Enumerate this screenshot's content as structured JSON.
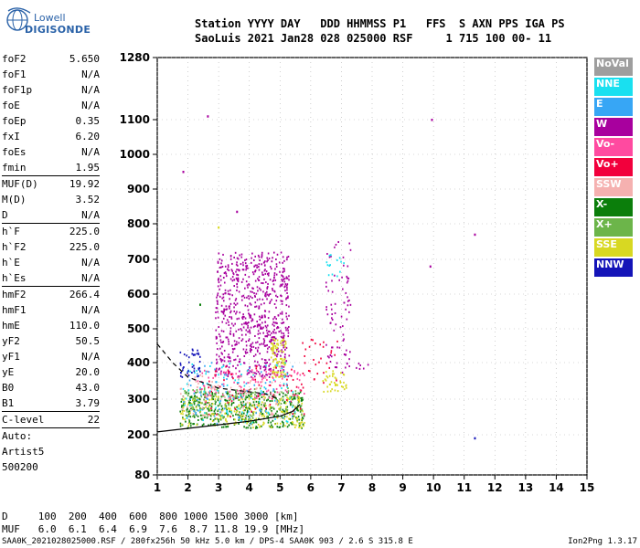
{
  "header": {
    "logo_line1": "Lowell",
    "logo_line2": "DIGISONDE",
    "line1": "Station YYYY DAY   DDD HHMMSS P1   FFS  S AXN PPS IGA PS",
    "line2": "SaoLuis 2021 Jan28 028 025000 RSF     1 715 100 00- 11"
  },
  "params": [
    {
      "k": "foF2",
      "v": "5.650"
    },
    {
      "k": "foF1",
      "v": "N/A"
    },
    {
      "k": "foF1p",
      "v": "N/A"
    },
    {
      "k": "foE",
      "v": "N/A"
    },
    {
      "k": "foEp",
      "v": "0.35"
    },
    {
      "k": "fxI",
      "v": "6.20"
    },
    {
      "k": "foEs",
      "v": "N/A"
    },
    {
      "k": "fmin",
      "v": "1.95"
    },
    {
      "sep": true
    },
    {
      "k": "MUF(D)",
      "v": "19.92"
    },
    {
      "k": "M(D)",
      "v": "3.52"
    },
    {
      "k": "D",
      "v": "N/A"
    },
    {
      "sep": true
    },
    {
      "k": "h`F",
      "v": "225.0"
    },
    {
      "k": "h`F2",
      "v": "225.0"
    },
    {
      "k": "h`E",
      "v": "N/A"
    },
    {
      "k": "h`Es",
      "v": "N/A"
    },
    {
      "sep": true
    },
    {
      "k": "hmF2",
      "v": "266.4"
    },
    {
      "k": "hmF1",
      "v": "N/A"
    },
    {
      "k": "hmE",
      "v": "110.0"
    },
    {
      "k": "yF2",
      "v": "50.5"
    },
    {
      "k": "yF1",
      "v": "N/A"
    },
    {
      "k": "yE",
      "v": "20.0"
    },
    {
      "k": "B0",
      "v": "43.0"
    },
    {
      "k": "B1",
      "v": "3.79"
    },
    {
      "sep": true
    },
    {
      "k": "C-level",
      "v": "22"
    },
    {
      "sep": true
    }
  ],
  "extra": [
    "Auto:",
    "Artist5",
    "500200"
  ],
  "legend": [
    {
      "label": "NoVal",
      "color": "#9e9e9e"
    },
    {
      "label": "NNE",
      "color": "#19e0f0"
    },
    {
      "label": "E",
      "color": "#37a6f5"
    },
    {
      "label": "W",
      "color": "#a8009e"
    },
    {
      "label": "Vo-",
      "color": "#ff4aa0"
    },
    {
      "label": "Vo+",
      "color": "#f2003c"
    },
    {
      "label": "SSW",
      "color": "#f5b1b0"
    },
    {
      "label": "X-",
      "color": "#0b7e0b"
    },
    {
      "label": "X+",
      "color": "#6cb54a"
    },
    {
      "label": "SSE",
      "color": "#d8d822"
    },
    {
      "label": "NNW",
      "color": "#1414b8"
    }
  ],
  "bottom": {
    "d_line": "D     100  200  400  600  800 1000 1500 3000 [km]",
    "muf_line": "MUF   6.0  6.1  6.4  6.9  7.6  8.7 11.8 19.9 [MHz]"
  },
  "footer": {
    "left": "SAA0K_2021028025000.RSF / 280fx256h 50 kHz 5.0 km / DPS-4 SAA0K 903 / 2.6 S 315.8 E",
    "right": "Ion2Png 1.3.17"
  },
  "chart_data": {
    "type": "scatter",
    "xlim": [
      1,
      15
    ],
    "x_ticks": [
      1,
      2,
      3,
      4,
      5,
      6,
      7,
      8,
      9,
      10,
      11,
      12,
      13,
      14,
      15
    ],
    "y_ticks": [
      80,
      200,
      300,
      400,
      500,
      600,
      700,
      800,
      900,
      1000,
      1100,
      1280
    ],
    "y_scale": "nonlinear (ionogram virtual height)",
    "grid": "dotted",
    "lines": [
      {
        "name": "trace",
        "points": [
          [
            1.0,
            208
          ],
          [
            2.0,
            218
          ],
          [
            3.0,
            228
          ],
          [
            4.0,
            238
          ],
          [
            5.0,
            252
          ],
          [
            5.4,
            265
          ],
          [
            5.65,
            285
          ]
        ]
      },
      {
        "name": "dashed",
        "points": [
          [
            1.0,
            455
          ],
          [
            1.5,
            400
          ],
          [
            2.0,
            360
          ],
          [
            3.0,
            330
          ],
          [
            4.0,
            320
          ],
          [
            4.5,
            315
          ],
          [
            5.0,
            300
          ]
        ]
      }
    ],
    "scatter_points": [
      {
        "x": 1.85,
        "y": 950,
        "c": "#a8009e"
      },
      {
        "x": 2.65,
        "y": 1110,
        "c": "#a8009e"
      },
      {
        "x": 9.95,
        "y": 1100,
        "c": "#a8009e"
      },
      {
        "x": 9.9,
        "y": 680,
        "c": "#a8009e"
      },
      {
        "x": 11.35,
        "y": 770,
        "c": "#a8009e"
      },
      {
        "x": 11.35,
        "y": 190,
        "c": "#1414b8"
      },
      {
        "x": 2.4,
        "y": 570,
        "c": "#0b7e0b"
      },
      {
        "x": 3.0,
        "y": 790,
        "c": "#d8d822"
      },
      {
        "x": 3.6,
        "y": 835,
        "c": "#a8009e"
      }
    ],
    "clusters": [
      {
        "x0": 2.9,
        "x1": 5.3,
        "y0": 360,
        "y1": 720,
        "n": 750,
        "c": "#a8009e"
      },
      {
        "x0": 4.7,
        "x1": 5.2,
        "y0": 360,
        "y1": 470,
        "n": 90,
        "c": "#d8d822"
      },
      {
        "x0": 1.75,
        "x1": 5.8,
        "y0": 218,
        "y1": 320,
        "n": 380,
        "c": "#0b7e0b"
      },
      {
        "x0": 1.75,
        "x1": 5.8,
        "y0": 220,
        "y1": 310,
        "n": 220,
        "c": "#d8d822"
      },
      {
        "x0": 1.8,
        "x1": 5.8,
        "y0": 240,
        "y1": 330,
        "n": 160,
        "c": "#6cb54a"
      },
      {
        "x0": 2.2,
        "x1": 5.8,
        "y0": 300,
        "y1": 380,
        "n": 120,
        "c": "#ff4aa0"
      },
      {
        "x0": 2.5,
        "x1": 5.8,
        "y0": 250,
        "y1": 390,
        "n": 60,
        "c": "#f2003c"
      },
      {
        "x0": 1.8,
        "x1": 5.5,
        "y0": 230,
        "y1": 400,
        "n": 90,
        "c": "#19e0f0"
      },
      {
        "x0": 1.8,
        "x1": 5.5,
        "y0": 230,
        "y1": 400,
        "n": 70,
        "c": "#37a6f5"
      },
      {
        "x0": 1.75,
        "x1": 2.4,
        "y0": 360,
        "y1": 440,
        "n": 40,
        "c": "#1414b8"
      },
      {
        "x0": 1.75,
        "x1": 5.0,
        "y0": 250,
        "y1": 370,
        "n": 80,
        "c": "#f5b1b0"
      },
      {
        "x0": 6.5,
        "x1": 7.3,
        "y0": 370,
        "y1": 750,
        "n": 80,
        "c": "#a8009e"
      },
      {
        "x0": 6.4,
        "x1": 7.2,
        "y0": 320,
        "y1": 380,
        "n": 40,
        "c": "#d8d822"
      },
      {
        "x0": 6.5,
        "x1": 7.1,
        "y0": 650,
        "y1": 720,
        "n": 14,
        "c": "#19e0f0"
      },
      {
        "x0": 5.7,
        "x1": 7.0,
        "y0": 340,
        "y1": 470,
        "n": 30,
        "c": "#f2003c"
      },
      {
        "x0": 7.4,
        "x1": 7.9,
        "y0": 380,
        "y1": 400,
        "n": 6,
        "c": "#a8009e"
      }
    ]
  }
}
